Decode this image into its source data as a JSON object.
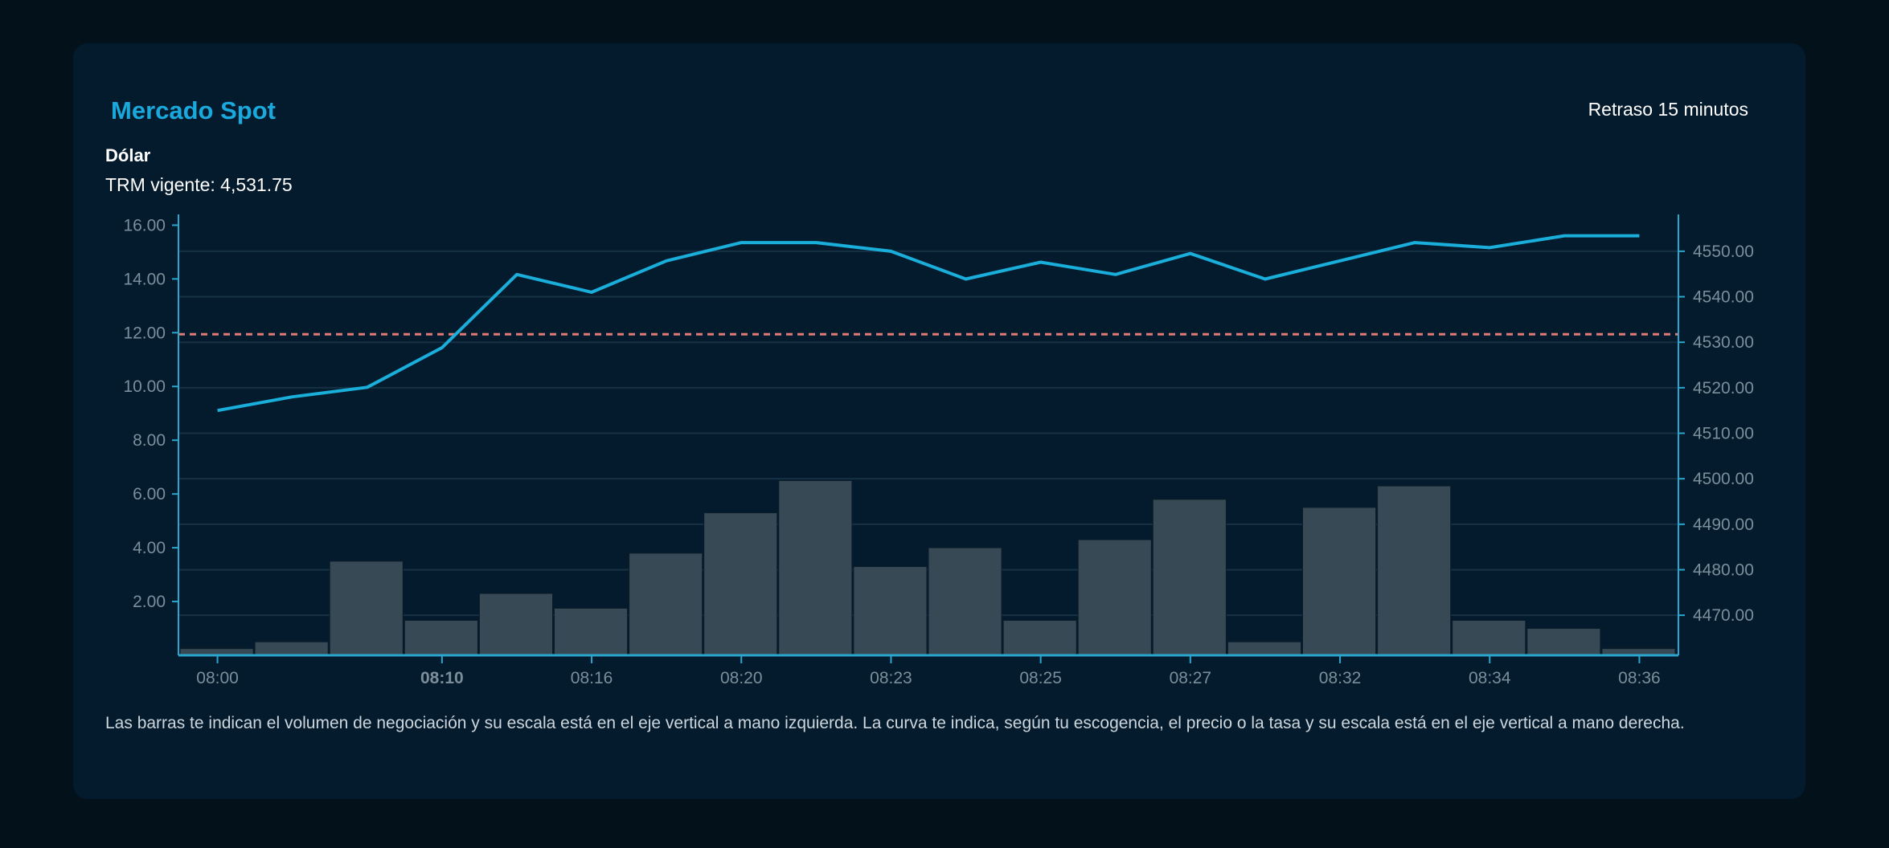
{
  "header": {
    "title": "Mercado Spot",
    "delay_label": "Retraso 15 minutos",
    "asset": "Dólar",
    "trm_label": "TRM vigente: 4,531.75"
  },
  "description": "Las barras te indican el volumen de negociación y su escala está en el eje vertical a mano izquierda. La curva te indica, según tu escogencia, el precio o la tasa y su escala está en el eje vertical a mano derecha.",
  "colors": {
    "accent": "#19a9dc",
    "line": "#1aaedb",
    "axis": "#2aa6cf",
    "bars": "#364955",
    "reference_line": "#e07b78",
    "grid": "#163044"
  },
  "chart_data": {
    "type": "bar+line",
    "categories": [
      "08:00",
      "",
      "",
      "08:10",
      "",
      "08:16",
      "",
      "08:20",
      "",
      "08:23",
      "",
      "08:25",
      "",
      "08:27",
      "",
      "08:32",
      "",
      "08:34",
      "",
      "08:36"
    ],
    "bold_tick": "08:10",
    "bars": {
      "axis": "left",
      "values": [
        0.25,
        0.5,
        3.5,
        1.3,
        2.3,
        1.75,
        3.8,
        5.3,
        6.5,
        3.3,
        4.0,
        1.3,
        4.3,
        5.8,
        0.5,
        5.5,
        6.3,
        1.3,
        1.0,
        0.25
      ]
    },
    "line": {
      "axis": "right",
      "values": [
        4515.0,
        4518.0,
        4520.1,
        4528.8,
        4544.9,
        4541.0,
        4547.9,
        4551.9,
        4551.9,
        4550.0,
        4543.9,
        4547.6,
        4544.9,
        4549.5,
        4543.9,
        4547.9,
        4551.9,
        4550.8,
        4553.4,
        4553.4
      ]
    },
    "reference_line": {
      "axis": "right",
      "value": 4531.75,
      "style": "dashed"
    },
    "left_axis": {
      "ylim": [
        0,
        16.4
      ],
      "ticks": [
        "2.00",
        "4.00",
        "6.00",
        "8.00",
        "10.00",
        "12.00",
        "14.00",
        "16.00"
      ]
    },
    "right_axis": {
      "ylim": [
        4461.2,
        4558.1
      ],
      "ticks": [
        "4470.00",
        "4480.00",
        "4490.00",
        "4500.00",
        "4510.00",
        "4520.00",
        "4530.00",
        "4540.00",
        "4550.00"
      ]
    },
    "grid": "horizontal, aligned to right axis",
    "legend": "none"
  }
}
